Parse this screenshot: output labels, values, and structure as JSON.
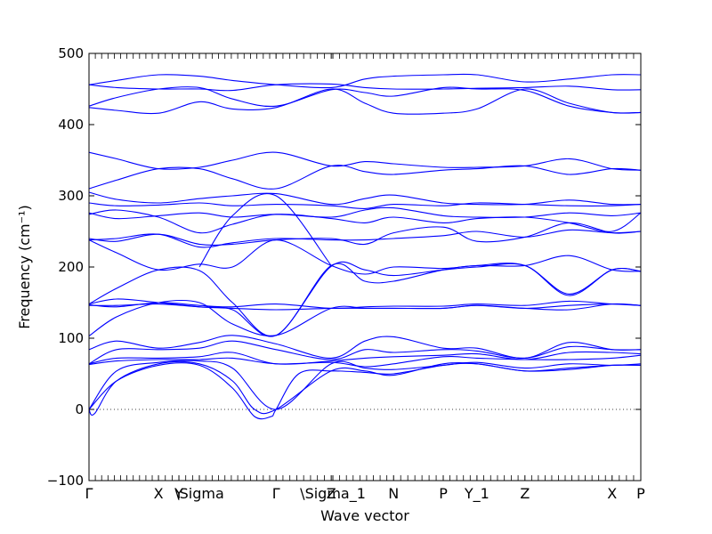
{
  "chart_data": {
    "type": "line",
    "xlabel": "Wave vector",
    "ylabel": "Frequency (cm⁻¹)",
    "ylim": [
      -100,
      500
    ],
    "yticks": [
      -100,
      0,
      100,
      200,
      300,
      400,
      500
    ],
    "xlim": [
      0,
      1
    ],
    "high_symmetry_points": [
      {
        "label": "Γ",
        "x": 0.0
      },
      {
        "label": "X",
        "x": 0.126
      },
      {
        "label": "Y",
        "x": 0.163
      },
      {
        "label": "\\Sigma",
        "x": 0.2
      },
      {
        "label": "Γ",
        "x": 0.339
      },
      {
        "label": "Z",
        "x": 0.439
      },
      {
        "label": "\\Sigma_1",
        "x": 0.442
      },
      {
        "label": "N",
        "x": 0.552
      },
      {
        "label": "P",
        "x": 0.642
      },
      {
        "label": "Y_1",
        "x": 0.703
      },
      {
        "label": "Z",
        "x": 0.79
      },
      {
        "label": "X",
        "x": 0.948
      },
      {
        "label": "P",
        "x": 1.0
      }
    ],
    "zero_line": 0,
    "line_color": "#0000ff",
    "series": [
      {
        "x": [
          0,
          0.05,
          0.126,
          0.2,
          0.26,
          0.339,
          0.439,
          0.5,
          0.552,
          0.642,
          0.703,
          0.79,
          0.87,
          0.948,
          1.0
        ],
        "values": [
          456,
          462,
          470,
          468,
          462,
          456,
          452,
          464,
          468,
          470,
          470,
          460,
          464,
          470,
          470
        ]
      },
      {
        "x": [
          0,
          0.05,
          0.126,
          0.2,
          0.26,
          0.339,
          0.439,
          0.5,
          0.552,
          0.642,
          0.703,
          0.79,
          0.87,
          0.948,
          1.0
        ],
        "values": [
          456,
          452,
          450,
          450,
          448,
          456,
          457,
          452,
          450,
          450,
          451,
          452,
          454,
          449,
          449
        ]
      },
      {
        "x": [
          0,
          0.05,
          0.126,
          0.2,
          0.26,
          0.339,
          0.439,
          0.5,
          0.552,
          0.642,
          0.703,
          0.79,
          0.87,
          0.948,
          1.0
        ],
        "values": [
          426,
          438,
          450,
          452,
          436,
          426,
          449,
          445,
          440,
          452,
          450,
          448,
          426,
          417,
          417
        ]
      },
      {
        "x": [
          0,
          0.05,
          0.126,
          0.2,
          0.26,
          0.339,
          0.439,
          0.5,
          0.552,
          0.642,
          0.703,
          0.79,
          0.87,
          0.948,
          1.0
        ],
        "values": [
          424,
          420,
          416,
          432,
          422,
          424,
          450,
          430,
          416,
          416,
          422,
          450,
          430,
          417,
          417
        ]
      },
      {
        "x": [
          0,
          0.05,
          0.126,
          0.2,
          0.26,
          0.339,
          0.439,
          0.5,
          0.552,
          0.642,
          0.703,
          0.79,
          0.87,
          0.948,
          1.0
        ],
        "values": [
          361,
          352,
          338,
          340,
          350,
          361,
          342,
          348,
          345,
          340,
          340,
          342,
          352,
          338,
          336
        ]
      },
      {
        "x": [
          0,
          0.05,
          0.126,
          0.2,
          0.26,
          0.339,
          0.439,
          0.5,
          0.552,
          0.642,
          0.703,
          0.79,
          0.87,
          0.948,
          1.0
        ],
        "values": [
          310,
          322,
          338,
          338,
          324,
          310,
          342,
          334,
          330,
          336,
          338,
          342,
          330,
          338,
          336
        ]
      },
      {
        "x": [
          0,
          0.05,
          0.126,
          0.2,
          0.26,
          0.339,
          0.439,
          0.5,
          0.552,
          0.642,
          0.703,
          0.79,
          0.87,
          0.948,
          1.0
        ],
        "values": [
          305,
          295,
          290,
          296,
          300,
          303,
          288,
          296,
          301,
          290,
          288,
          288,
          294,
          288,
          288
        ]
      },
      {
        "x": [
          0,
          0.05,
          0.126,
          0.2,
          0.26,
          0.339,
          0.439,
          0.5,
          0.552,
          0.642,
          0.703,
          0.79,
          0.87,
          0.948,
          1.0
        ],
        "values": [
          290,
          286,
          287,
          290,
          286,
          288,
          286,
          282,
          288,
          286,
          290,
          288,
          286,
          286,
          288
        ]
      },
      {
        "x": [
          0,
          0.05,
          0.126,
          0.2,
          0.26,
          0.339,
          0.439,
          0.5,
          0.552,
          0.642,
          0.703,
          0.79,
          0.87,
          0.948,
          1.0
        ],
        "values": [
          276,
          268,
          272,
          276,
          270,
          274,
          270,
          280,
          283,
          272,
          270,
          270,
          276,
          272,
          276
        ]
      },
      {
        "x": [
          0,
          0.05,
          0.126,
          0.2,
          0.26,
          0.339,
          0.439,
          0.5,
          0.552,
          0.642,
          0.703,
          0.79,
          0.87,
          0.948,
          1.0
        ],
        "values": [
          274,
          280,
          270,
          248,
          260,
          274,
          268,
          262,
          270,
          262,
          268,
          270,
          262,
          250,
          276
        ]
      },
      {
        "x": [
          0,
          0.05,
          0.126,
          0.2,
          0.26,
          0.339,
          0.439,
          0.5,
          0.552,
          0.642,
          0.703,
          0.79,
          0.87,
          0.948,
          1.0
        ],
        "values": [
          240,
          236,
          246,
          232,
          232,
          238,
          240,
          232,
          248,
          256,
          236,
          242,
          262,
          248,
          250
        ]
      },
      {
        "x": [
          0,
          0.05,
          0.126,
          0.2,
          0.26,
          0.339,
          0.439,
          0.5,
          0.552,
          0.642,
          0.703,
          0.79,
          0.87,
          0.948,
          1.0
        ],
        "values": [
          238,
          240,
          246,
          228,
          234,
          240,
          238,
          238,
          240,
          244,
          250,
          242,
          252,
          248,
          250
        ]
      },
      {
        "x": [
          0,
          0.05,
          0.126,
          0.2,
          0.26,
          0.339,
          0.439,
          0.5,
          0.552,
          0.642,
          0.703,
          0.79,
          0.87,
          0.948,
          1.0
        ],
        "values": [
          238,
          220,
          196,
          204,
          200,
          238,
          202,
          190,
          200,
          198,
          202,
          202,
          216,
          196,
          194
        ]
      },
      {
        "x": [
          0,
          0.05,
          0.126,
          0.2,
          0.26,
          0.339,
          0.439,
          0.5,
          0.552,
          0.642,
          0.703,
          0.79,
          0.87,
          0.948,
          1.0
        ],
        "values": [
          148,
          170,
          196,
          195,
          150,
          104,
          202,
          180,
          180,
          196,
          202,
          202,
          160,
          196,
          194
        ]
      },
      {
        "x": [
          0,
          0.05,
          0.126,
          0.2,
          0.26,
          0.339,
          0.439,
          0.5,
          0.552,
          0.642,
          0.703,
          0.79,
          0.87,
          0.948,
          1.0
        ],
        "values": [
          148,
          155,
          150,
          144,
          140,
          104,
          201,
          196,
          188,
          196,
          200,
          202,
          162,
          196,
          194
        ]
      },
      {
        "x": [
          0,
          0.05,
          0.126,
          0.2,
          0.26,
          0.339,
          0.439,
          0.5,
          0.552,
          0.642,
          0.703,
          0.79,
          0.87,
          0.948,
          1.0
        ],
        "values": [
          147,
          144,
          150,
          146,
          144,
          148,
          142,
          144,
          145,
          145,
          148,
          146,
          152,
          148,
          146
        ]
      },
      {
        "x": [
          0,
          0.05,
          0.126,
          0.2,
          0.26,
          0.339,
          0.439,
          0.5,
          0.552,
          0.642,
          0.703,
          0.79,
          0.87,
          0.948,
          1.0
        ],
        "values": [
          146,
          146,
          148,
          144,
          142,
          140,
          142,
          142,
          142,
          142,
          146,
          142,
          146,
          148,
          146
        ]
      },
      {
        "x": [
          0,
          0.05,
          0.126,
          0.2,
          0.26,
          0.339,
          0.439,
          0.5,
          0.552,
          0.642,
          0.703,
          0.79,
          0.87,
          0.948,
          1.0
        ],
        "values": [
          103,
          130,
          150,
          150,
          120,
          104,
          142,
          142,
          142,
          142,
          146,
          142,
          140,
          148,
          146
        ]
      },
      {
        "x": [
          0,
          0.05,
          0.126,
          0.2,
          0.26,
          0.339,
          0.439,
          0.5,
          0.552,
          0.642,
          0.703,
          0.79,
          0.87,
          0.948,
          1.0
        ],
        "values": [
          84,
          96,
          86,
          94,
          104,
          92,
          72,
          96,
          102,
          86,
          86,
          72,
          94,
          84,
          84
        ]
      },
      {
        "x": [
          0,
          0.05,
          0.126,
          0.2,
          0.26,
          0.339,
          0.439,
          0.5,
          0.552,
          0.642,
          0.703,
          0.79,
          0.87,
          0.948,
          1.0
        ],
        "values": [
          64,
          84,
          84,
          86,
          96,
          84,
          70,
          84,
          80,
          84,
          82,
          72,
          88,
          84,
          84
        ]
      },
      {
        "x": [
          0,
          0.05,
          0.126,
          0.2,
          0.26,
          0.339,
          0.439,
          0.5,
          0.552,
          0.642,
          0.703,
          0.79,
          0.87,
          0.948,
          1.0
        ],
        "values": [
          64,
          72,
          72,
          74,
          80,
          64,
          68,
          72,
          74,
          76,
          78,
          70,
          80,
          80,
          78
        ]
      },
      {
        "x": [
          0,
          0.05,
          0.126,
          0.2,
          0.26,
          0.339,
          0.439,
          0.5,
          0.552,
          0.642,
          0.703,
          0.79,
          0.87,
          0.948,
          1.0
        ],
        "values": [
          63,
          68,
          70,
          70,
          72,
          64,
          66,
          60,
          64,
          74,
          72,
          70,
          70,
          72,
          76
        ]
      },
      {
        "x": [
          0,
          0.05,
          0.126,
          0.2,
          0.26,
          0.339,
          0.439,
          0.5,
          0.552,
          0.642,
          0.703,
          0.79,
          0.87,
          0.948,
          1.0
        ],
        "values": [
          0,
          54,
          66,
          68,
          58,
          0,
          64,
          58,
          56,
          62,
          66,
          58,
          64,
          62,
          64
        ]
      },
      {
        "x": [
          0,
          0.01,
          0.05,
          0.126,
          0.2,
          0.26,
          0.3,
          0.339,
          0.439,
          0.5,
          0.552,
          0.642,
          0.703,
          0.79,
          0.87,
          0.948,
          1.0
        ],
        "values": [
          0,
          -6,
          40,
          64,
          64,
          40,
          0,
          0,
          54,
          54,
          48,
          64,
          64,
          54,
          56,
          62,
          62
        ]
      },
      {
        "x": [
          0,
          0.05,
          0.126,
          0.2,
          0.26,
          0.3,
          0.33,
          0.339,
          0.38,
          0.439,
          0.5,
          0.552,
          0.642,
          0.703,
          0.79,
          0.87,
          0.948,
          1.0
        ],
        "values": [
          0,
          40,
          62,
          62,
          30,
          -10,
          -10,
          0,
          50,
          54,
          52,
          50,
          62,
          64,
          54,
          58,
          62,
          62
        ]
      },
      {
        "x": [
          0.2,
          0.26,
          0.339,
          0.439
        ],
        "values": [
          200,
          272,
          300,
          202
        ]
      }
    ]
  }
}
